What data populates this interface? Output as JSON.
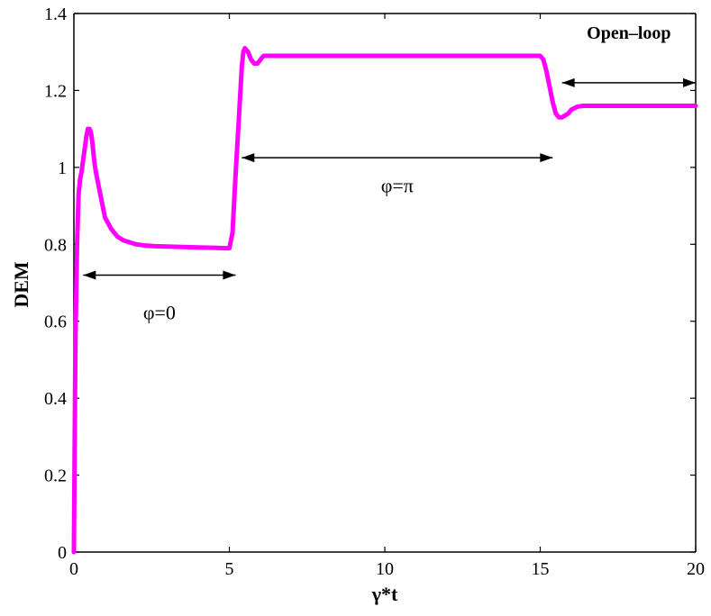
{
  "chart_data": {
    "type": "line",
    "title": "",
    "xlabel": "γ*t",
    "ylabel": "DEM",
    "xlim": [
      0,
      20
    ],
    "ylim": [
      0,
      1.4
    ],
    "xticks": [
      0,
      5,
      10,
      15,
      20
    ],
    "yticks": [
      0,
      0.2,
      0.4,
      0.6,
      0.8,
      1,
      1.2,
      1.4
    ],
    "xtick_labels": [
      "0",
      "5",
      "10",
      "15",
      "20"
    ],
    "ytick_labels": [
      "0",
      "0.2",
      "0.4",
      "0.6",
      "0.8",
      "1",
      "1.2",
      "1.4"
    ],
    "grid": false,
    "series": [
      {
        "color": "#ff00ff",
        "x": [
          0,
          0.05,
          0.1,
          0.15,
          0.2,
          0.25,
          0.3,
          0.35,
          0.4,
          0.45,
          0.5,
          0.55,
          0.6,
          0.65,
          0.7,
          0.8,
          0.9,
          1.0,
          1.2,
          1.4,
          1.6,
          1.8,
          2.0,
          2.3,
          2.6,
          3.0,
          3.5,
          4.0,
          4.5,
          4.9,
          5.0,
          5.1,
          5.2,
          5.3,
          5.4,
          5.45,
          5.5,
          5.6,
          5.7,
          5.8,
          5.9,
          6.0,
          6.1,
          6.2,
          6.3,
          6.5,
          7,
          8,
          10,
          12,
          14,
          15,
          15.1,
          15.2,
          15.3,
          15.4,
          15.5,
          15.6,
          15.7,
          15.8,
          15.9,
          16.0,
          16.2,
          16.4,
          16.6,
          17,
          18,
          20
        ],
        "y": [
          0.0,
          0.55,
          0.8,
          0.93,
          0.97,
          0.99,
          1.02,
          1.05,
          1.08,
          1.1,
          1.1,
          1.09,
          1.06,
          1.02,
          0.99,
          0.95,
          0.91,
          0.87,
          0.84,
          0.82,
          0.81,
          0.805,
          0.8,
          0.797,
          0.795,
          0.794,
          0.793,
          0.792,
          0.791,
          0.79,
          0.79,
          0.83,
          0.98,
          1.12,
          1.26,
          1.3,
          1.31,
          1.3,
          1.28,
          1.27,
          1.27,
          1.28,
          1.29,
          1.29,
          1.29,
          1.29,
          1.29,
          1.29,
          1.29,
          1.29,
          1.29,
          1.29,
          1.28,
          1.25,
          1.21,
          1.17,
          1.14,
          1.13,
          1.13,
          1.135,
          1.14,
          1.15,
          1.158,
          1.16,
          1.16,
          1.16,
          1.16,
          1.16
        ]
      }
    ],
    "annotations": [
      {
        "text": "φ=0",
        "x_range": [
          0.3,
          5.2
        ],
        "y_arrow": 0.72,
        "y_text": 0.605
      },
      {
        "text": "φ=π",
        "x_range": [
          5.4,
          15.4
        ],
        "y_arrow": 1.025,
        "y_text": 0.935
      },
      {
        "text": "Open–loop",
        "x_range": [
          15.7,
          20.0
        ],
        "y_arrow": 1.22,
        "y_text": 1.335
      }
    ]
  }
}
